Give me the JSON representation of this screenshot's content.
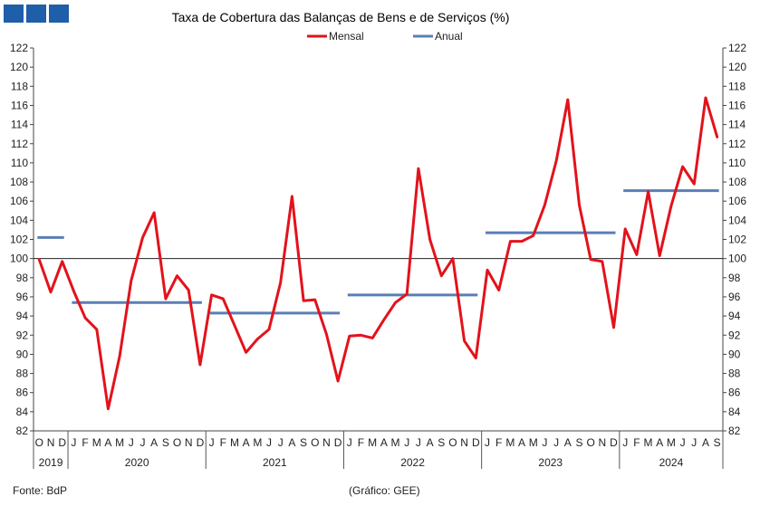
{
  "header": {
    "logo_name": "logo-squares"
  },
  "footer": {
    "source": "Fonte:  BdP",
    "credit": "(Gráfico: GEE)"
  },
  "colors": {
    "monthly": "#e3121b",
    "annual": "#5a7fb5",
    "logo": "#1f5ea8",
    "ref_line": "#222222"
  },
  "chart_data": {
    "type": "line",
    "title": "Taxa de Cobertura das Balanças de Bens e de Serviços (%)",
    "xlabel": "",
    "ylabel": "",
    "ylim": [
      82,
      122
    ],
    "y_ticks": [
      82,
      84,
      86,
      88,
      90,
      92,
      94,
      96,
      98,
      100,
      102,
      104,
      106,
      108,
      110,
      112,
      114,
      116,
      118,
      120,
      122
    ],
    "reference_line": 100,
    "legend": {
      "placement": "top-center",
      "entries": [
        "Mensal",
        "Anual"
      ]
    },
    "month_labels": [
      "O",
      "N",
      "D",
      "J",
      "F",
      "M",
      "A",
      "M",
      "J",
      "J",
      "A",
      "S",
      "O",
      "N",
      "D",
      "J",
      "F",
      "M",
      "A",
      "M",
      "J",
      "J",
      "A",
      "S",
      "O",
      "N",
      "D",
      "J",
      "F",
      "M",
      "A",
      "M",
      "J",
      "J",
      "A",
      "S",
      "O",
      "N",
      "D",
      "J",
      "F",
      "M",
      "A",
      "M",
      "J",
      "J",
      "A",
      "S",
      "O",
      "N",
      "D",
      "J",
      "F",
      "M",
      "A",
      "M",
      "J",
      "J",
      "A",
      "S"
    ],
    "years": [
      {
        "label": "2019",
        "start": 0,
        "end": 2
      },
      {
        "label": "2020",
        "start": 3,
        "end": 14
      },
      {
        "label": "2021",
        "start": 15,
        "end": 26
      },
      {
        "label": "2022",
        "start": 27,
        "end": 38
      },
      {
        "label": "2023",
        "start": 39,
        "end": 50
      },
      {
        "label": "2024",
        "start": 51,
        "end": 59
      }
    ],
    "series": [
      {
        "name": "Mensal",
        "values": [
          99.9,
          96.5,
          99.7,
          96.6,
          93.8,
          92.6,
          84.3,
          89.8,
          97.7,
          102.2,
          104.8,
          95.8,
          98.2,
          96.7,
          88.9,
          96.2,
          95.8,
          93.0,
          90.2,
          91.6,
          92.6,
          97.5,
          106.5,
          95.6,
          95.7,
          92.1,
          87.2,
          91.9,
          92.0,
          91.7,
          93.6,
          95.4,
          96.3,
          109.4,
          102.0,
          98.2,
          100.0,
          91.4,
          89.6,
          98.8,
          96.7,
          101.8,
          101.8,
          102.4,
          105.6,
          110.2,
          116.6,
          105.6,
          99.9,
          99.7,
          92.8,
          103.1,
          100.4,
          107.0,
          100.3,
          105.5,
          109.6,
          107.8,
          116.8,
          112.7
        ]
      },
      {
        "name": "Anual",
        "segments": [
          {
            "start": 0,
            "end": 2,
            "value": 102.2
          },
          {
            "start": 3,
            "end": 14,
            "value": 95.4
          },
          {
            "start": 15,
            "end": 26,
            "value": 94.3
          },
          {
            "start": 27,
            "end": 38,
            "value": 96.2
          },
          {
            "start": 39,
            "end": 50,
            "value": 102.7
          },
          {
            "start": 51,
            "end": 59,
            "value": 107.1
          }
        ]
      }
    ]
  }
}
